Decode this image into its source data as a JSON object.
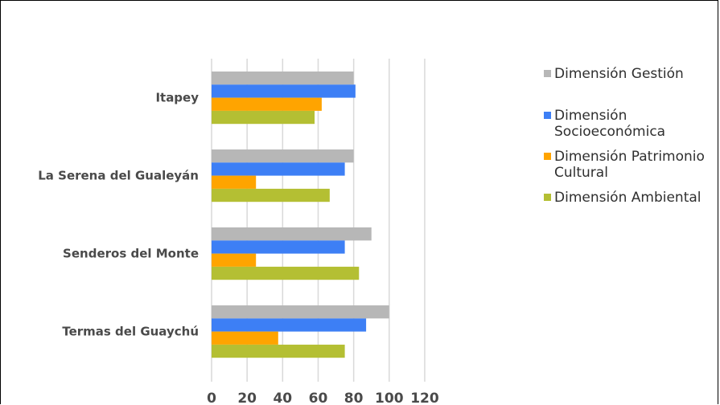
{
  "chart_data": {
    "type": "bar",
    "orientation": "horizontal",
    "title": "",
    "xlabel": "",
    "ylabel": "",
    "xlim": [
      0,
      120
    ],
    "xticks": [
      "0",
      "20",
      "40",
      "60",
      "80",
      "100",
      "120"
    ],
    "grid": true,
    "legend_position": "right",
    "categories": [
      "Itapey",
      "La Serena del Gualeyán",
      "Senderos del Monte",
      "Termas del Guaychú"
    ],
    "series": [
      {
        "name": "Dimensión Gestión",
        "legend_lines": [
          "Dimensión Gestión"
        ],
        "color": "#b7b7b7",
        "values": [
          80,
          80,
          90,
          100
        ]
      },
      {
        "name": "Dimensión Socioeconómica",
        "legend_lines": [
          "Dimensión",
          "Socioeconómica"
        ],
        "color": "#3d7ff5",
        "values": [
          81,
          75,
          75,
          87
        ]
      },
      {
        "name": "Dimensión Patrimonio Cultural",
        "legend_lines": [
          "Dimensión Patrimonio",
          "Cultural"
        ],
        "color": "#ffa400",
        "values": [
          62,
          25,
          25,
          37.5
        ]
      },
      {
        "name": "Dimensión Ambiental",
        "legend_lines": [
          "Dimensión Ambiental"
        ],
        "color": "#b4bf33",
        "values": [
          58,
          66.5,
          83,
          75
        ]
      }
    ]
  }
}
